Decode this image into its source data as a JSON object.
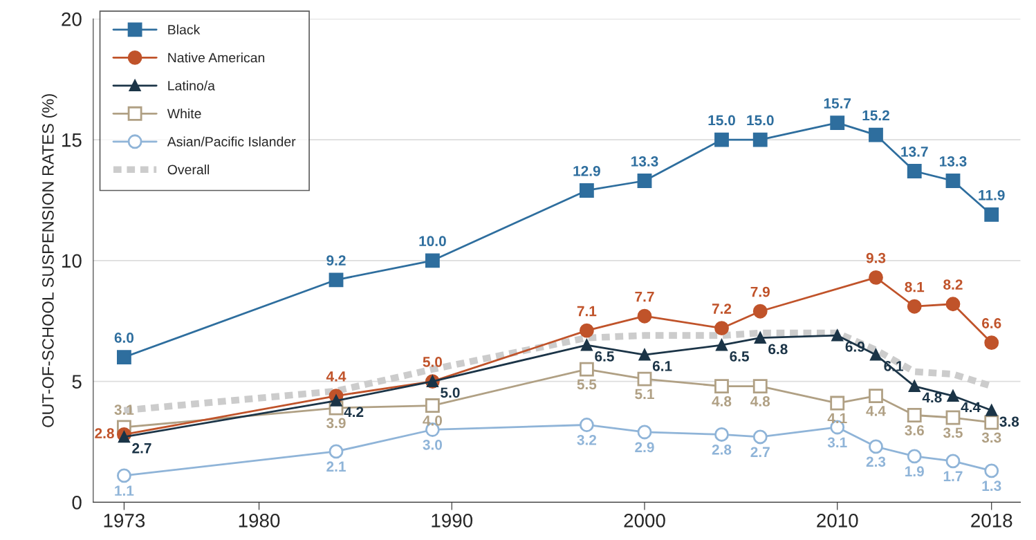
{
  "chart_data": {
    "type": "line",
    "ylabel": "OUT-OF-SCHOOL SUSPENSION RATES (%)",
    "x": [
      1973,
      1984,
      1989,
      1997,
      2000,
      2004,
      2006,
      2010,
      2012,
      2014,
      2016,
      2018
    ],
    "series": [
      {
        "name": "Black",
        "color": "#2e6e9e",
        "marker": "square",
        "values": [
          6.0,
          9.2,
          10.0,
          12.9,
          13.3,
          15.0,
          15.0,
          15.7,
          15.2,
          13.7,
          13.3,
          11.9
        ],
        "value_labels": [
          "6.0",
          "9.2",
          "10.0",
          "12.9",
          "13.3",
          "15.0",
          "15.0",
          "15.7",
          "15.2",
          "13.7",
          "13.3",
          "11.9"
        ]
      },
      {
        "name": "Native American",
        "color": "#c0532a",
        "marker": "circle",
        "x": [
          1973,
          1984,
          1989,
          1997,
          2000,
          2004,
          2006,
          2012,
          2014,
          2016,
          2018
        ],
        "values": [
          2.8,
          4.4,
          5.0,
          7.1,
          7.7,
          7.2,
          7.9,
          9.3,
          8.1,
          8.2,
          6.6
        ],
        "value_labels": [
          "2.8",
          "4.4",
          "5.0",
          "7.1",
          "7.7",
          "7.2",
          "7.9",
          "9.3",
          "8.1",
          "8.2",
          "6.6"
        ]
      },
      {
        "name": "Latino/a",
        "color": "#1b3447",
        "marker": "triangle",
        "values": [
          2.7,
          4.2,
          5.0,
          6.5,
          6.1,
          6.5,
          6.8,
          6.9,
          6.1,
          4.8,
          4.4,
          3.8
        ],
        "value_labels": [
          "2.7",
          "4.2",
          "5.0",
          "6.5",
          "6.1",
          "6.5",
          "6.8",
          "6.9",
          "6.1",
          "4.8",
          "4.4",
          "3.8"
        ]
      },
      {
        "name": "White",
        "color": "#b0a084",
        "marker": "square",
        "values": [
          3.1,
          3.9,
          4.0,
          5.5,
          5.1,
          4.8,
          4.8,
          4.1,
          4.4,
          3.6,
          3.5,
          3.3
        ],
        "value_labels": [
          "3.1",
          "3.9",
          "4.0",
          "5.5",
          "5.1",
          "4.8",
          "4.8",
          "4.1",
          "4.4",
          "3.6",
          "3.5",
          "3.3"
        ]
      },
      {
        "name": "Asian/Pacific Islander",
        "color": "#8fb4d8",
        "marker": "circle",
        "values": [
          1.1,
          2.1,
          3.0,
          3.2,
          2.9,
          2.8,
          2.7,
          3.1,
          2.3,
          1.9,
          1.7,
          1.3
        ],
        "value_labels": [
          "1.1",
          "2.1",
          "3.0",
          "3.2",
          "2.9",
          "2.8",
          "2.7",
          "3.1",
          "2.3",
          "1.9",
          "1.7",
          "1.3"
        ]
      },
      {
        "name": "Overall",
        "color": "#cccccc",
        "marker": "none",
        "line_style": "dashed",
        "values": [
          3.8,
          4.6,
          5.5,
          6.8,
          6.9,
          6.9,
          7.0,
          7.0,
          6.3,
          5.4,
          5.3,
          4.8
        ]
      }
    ],
    "xlim": [
      1971.4,
      2019.5
    ],
    "xticks": [
      1973,
      1980,
      1990,
      2000,
      2010,
      2018
    ],
    "ylim": [
      0,
      20
    ],
    "yticks": [
      0,
      5,
      10,
      15,
      20
    ],
    "grid": "y",
    "legend": "top left"
  }
}
